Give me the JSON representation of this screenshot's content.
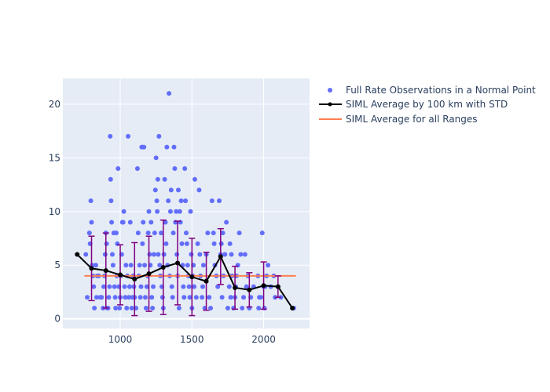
{
  "chart_data": {
    "type": "scatter",
    "xlim": [
      600,
      2320
    ],
    "ylim": [
      -0.9,
      22.4
    ],
    "x_ticks": [
      1000,
      1500,
      2000
    ],
    "y_ticks": [
      0,
      5,
      10,
      15,
      20
    ],
    "grid": true,
    "legend_position": "right",
    "colors": {
      "plot_bg": "#E5ECF6",
      "grid": "#ffffff",
      "scatter": "#636EFA",
      "line": "#000000",
      "error_bar": "#800080",
      "average": "#FF7F50"
    },
    "series": [
      {
        "name": "Full Rate Observations in a Normal Point",
        "kind": "scatter",
        "points": [
          [
            760,
            6
          ],
          [
            770,
            2
          ],
          [
            785,
            8
          ],
          [
            790,
            7
          ],
          [
            795,
            11
          ],
          [
            800,
            9
          ],
          [
            805,
            5
          ],
          [
            810,
            4
          ],
          [
            815,
            3
          ],
          [
            820,
            1
          ],
          [
            830,
            5
          ],
          [
            835,
            2
          ],
          [
            840,
            4
          ],
          [
            850,
            4
          ],
          [
            860,
            2
          ],
          [
            870,
            2
          ],
          [
            880,
            1
          ],
          [
            885,
            3
          ],
          [
            890,
            4
          ],
          [
            895,
            6
          ],
          [
            900,
            8
          ],
          [
            905,
            7
          ],
          [
            910,
            1
          ],
          [
            915,
            1
          ],
          [
            920,
            2
          ],
          [
            925,
            3
          ],
          [
            930,
            17
          ],
          [
            933,
            13
          ],
          [
            936,
            11
          ],
          [
            940,
            9
          ],
          [
            945,
            6
          ],
          [
            950,
            5
          ],
          [
            955,
            8
          ],
          [
            960,
            3
          ],
          [
            965,
            2
          ],
          [
            968,
            1
          ],
          [
            972,
            8
          ],
          [
            976,
            4
          ],
          [
            980,
            7
          ],
          [
            985,
            14
          ],
          [
            990,
            3
          ],
          [
            995,
            1
          ],
          [
            1000,
            2
          ],
          [
            1005,
            4
          ],
          [
            1010,
            6
          ],
          [
            1015,
            9
          ],
          [
            1020,
            9
          ],
          [
            1025,
            10
          ],
          [
            1030,
            3
          ],
          [
            1035,
            2
          ],
          [
            1040,
            5
          ],
          [
            1045,
            1
          ],
          [
            1050,
            4
          ],
          [
            1055,
            17
          ],
          [
            1060,
            2
          ],
          [
            1065,
            3
          ],
          [
            1070,
            9
          ],
          [
            1075,
            5
          ],
          [
            1080,
            1
          ],
          [
            1085,
            2
          ],
          [
            1090,
            4
          ],
          [
            1095,
            3
          ],
          [
            1100,
            2
          ],
          [
            1110,
            1
          ],
          [
            1120,
            14
          ],
          [
            1125,
            8
          ],
          [
            1130,
            4
          ],
          [
            1135,
            5
          ],
          [
            1140,
            2
          ],
          [
            1145,
            3
          ],
          [
            1150,
            16
          ],
          [
            1155,
            7
          ],
          [
            1160,
            9
          ],
          [
            1165,
            16
          ],
          [
            1170,
            5
          ],
          [
            1175,
            2
          ],
          [
            1180,
            1
          ],
          [
            1185,
            3
          ],
          [
            1190,
            4
          ],
          [
            1195,
            8
          ],
          [
            1200,
            10
          ],
          [
            1205,
            6
          ],
          [
            1210,
            5
          ],
          [
            1215,
            9
          ],
          [
            1220,
            2
          ],
          [
            1225,
            1
          ],
          [
            1230,
            3
          ],
          [
            1235,
            6
          ],
          [
            1240,
            8
          ],
          [
            1245,
            12
          ],
          [
            1250,
            15
          ],
          [
            1255,
            11
          ],
          [
            1258,
            10
          ],
          [
            1262,
            13
          ],
          [
            1265,
            6
          ],
          [
            1270,
            17
          ],
          [
            1275,
            5
          ],
          [
            1280,
            4
          ],
          [
            1285,
            8
          ],
          [
            1290,
            3
          ],
          [
            1295,
            2
          ],
          [
            1300,
            1
          ],
          [
            1305,
            6
          ],
          [
            1310,
            13
          ],
          [
            1315,
            9
          ],
          [
            1320,
            7
          ],
          [
            1325,
            16
          ],
          [
            1330,
            5
          ],
          [
            1335,
            11
          ],
          [
            1340,
            21
          ],
          [
            1345,
            4
          ],
          [
            1350,
            10
          ],
          [
            1355,
            12
          ],
          [
            1360,
            3
          ],
          [
            1365,
            2
          ],
          [
            1370,
            8
          ],
          [
            1375,
            16
          ],
          [
            1380,
            14
          ],
          [
            1385,
            9
          ],
          [
            1390,
            10
          ],
          [
            1395,
            6
          ],
          [
            1400,
            4
          ],
          [
            1405,
            12
          ],
          [
            1410,
            1
          ],
          [
            1415,
            10
          ],
          [
            1420,
            9
          ],
          [
            1425,
            11
          ],
          [
            1430,
            7
          ],
          [
            1435,
            5
          ],
          [
            1440,
            3
          ],
          [
            1445,
            2
          ],
          [
            1450,
            14
          ],
          [
            1455,
            11
          ],
          [
            1460,
            8
          ],
          [
            1465,
            7
          ],
          [
            1470,
            5
          ],
          [
            1475,
            4
          ],
          [
            1480,
            3
          ],
          [
            1485,
            2
          ],
          [
            1490,
            10
          ],
          [
            1495,
            6
          ],
          [
            1500,
            1
          ],
          [
            1505,
            4
          ],
          [
            1510,
            5
          ],
          [
            1515,
            3
          ],
          [
            1520,
            13
          ],
          [
            1530,
            2
          ],
          [
            1540,
            7
          ],
          [
            1550,
            12
          ],
          [
            1555,
            6
          ],
          [
            1560,
            4
          ],
          [
            1570,
            2
          ],
          [
            1575,
            3
          ],
          [
            1580,
            5
          ],
          [
            1590,
            1
          ],
          [
            1600,
            6
          ],
          [
            1610,
            8
          ],
          [
            1620,
            2
          ],
          [
            1630,
            1
          ],
          [
            1640,
            11
          ],
          [
            1650,
            8
          ],
          [
            1655,
            7
          ],
          [
            1660,
            5
          ],
          [
            1670,
            4
          ],
          [
            1680,
            3
          ],
          [
            1690,
            11
          ],
          [
            1700,
            6
          ],
          [
            1705,
            7
          ],
          [
            1710,
            2
          ],
          [
            1715,
            8
          ],
          [
            1720,
            4
          ],
          [
            1730,
            6
          ],
          [
            1740,
            9
          ],
          [
            1750,
            1
          ],
          [
            1760,
            3
          ],
          [
            1765,
            7
          ],
          [
            1770,
            2
          ],
          [
            1775,
            6
          ],
          [
            1780,
            4
          ],
          [
            1790,
            1
          ],
          [
            1800,
            2
          ],
          [
            1805,
            3
          ],
          [
            1810,
            4
          ],
          [
            1820,
            5
          ],
          [
            1830,
            8
          ],
          [
            1840,
            6
          ],
          [
            1850,
            1
          ],
          [
            1860,
            2
          ],
          [
            1870,
            6
          ],
          [
            1880,
            3
          ],
          [
            1890,
            4
          ],
          [
            1900,
            1
          ],
          [
            1910,
            2
          ],
          [
            1930,
            3
          ],
          [
            1960,
            4
          ],
          [
            1965,
            1
          ],
          [
            1970,
            2
          ],
          [
            1980,
            2
          ],
          [
            1990,
            8
          ],
          [
            2000,
            3
          ],
          [
            2005,
            1
          ],
          [
            2010,
            3
          ],
          [
            2020,
            4
          ],
          [
            2030,
            5
          ],
          [
            2050,
            3
          ],
          [
            2070,
            4
          ],
          [
            2080,
            2
          ],
          [
            2100,
            3
          ],
          [
            2120,
            2
          ],
          [
            2210,
            1
          ]
        ]
      },
      {
        "name": "SIML Average by 100 km with STD",
        "kind": "line_errorbar",
        "points": [
          {
            "x": 700,
            "y": 6.0,
            "err": 0
          },
          {
            "x": 800,
            "y": 4.7,
            "err": 3.0
          },
          {
            "x": 900,
            "y": 4.5,
            "err": 3.5
          },
          {
            "x": 1000,
            "y": 4.1,
            "err": 2.8
          },
          {
            "x": 1100,
            "y": 3.7,
            "err": 3.4
          },
          {
            "x": 1200,
            "y": 4.2,
            "err": 3.5
          },
          {
            "x": 1300,
            "y": 4.8,
            "err": 4.4
          },
          {
            "x": 1400,
            "y": 5.2,
            "err": 3.9
          },
          {
            "x": 1500,
            "y": 3.9,
            "err": 3.6
          },
          {
            "x": 1600,
            "y": 3.5,
            "err": 2.7
          },
          {
            "x": 1700,
            "y": 5.8,
            "err": 2.6
          },
          {
            "x": 1800,
            "y": 2.9,
            "err": 2.0
          },
          {
            "x": 1900,
            "y": 2.7,
            "err": 1.6
          },
          {
            "x": 2000,
            "y": 3.1,
            "err": 2.2
          },
          {
            "x": 2100,
            "y": 3.0,
            "err": 1.0
          },
          {
            "x": 2200,
            "y": 1.0,
            "err": 0
          }
        ]
      },
      {
        "name": "SIML Average for all Ranges",
        "kind": "hline",
        "x": [
          750,
          2225
        ],
        "y": 4.0
      }
    ]
  }
}
